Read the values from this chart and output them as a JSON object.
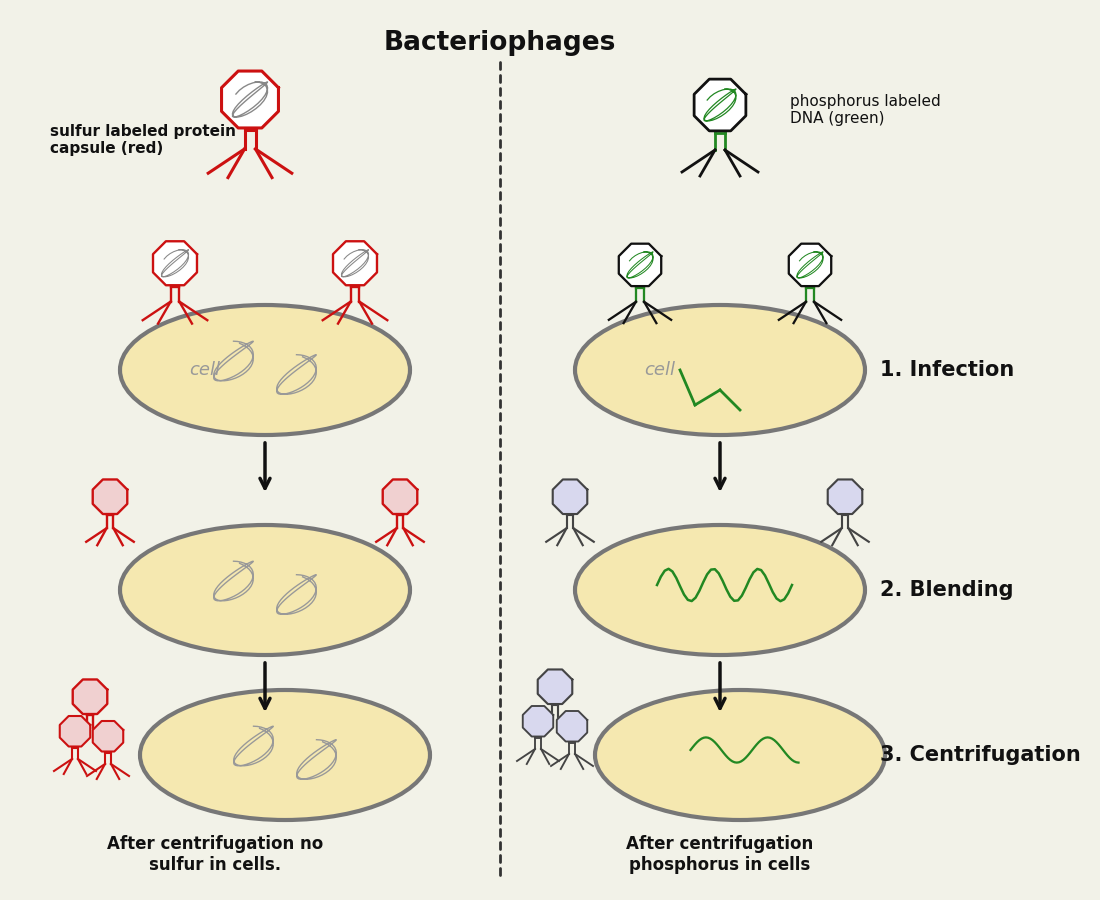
{
  "title": "Bacteriophages",
  "bg_color": "#f2f2e8",
  "left_label": "sulfur labeled protein\ncapsule (red)",
  "right_label": "phosphorus labeled\nDNA (green)",
  "step1_label": "1. Infection",
  "step2_label": "2. Blending",
  "step3_label": "3. Centrifugation",
  "left_footer": "After centrifugation no\nsulfur in cells.",
  "right_footer": "After centrifugation\nphosphorus in cells",
  "red_color": "#cc1111",
  "green_color": "#228822",
  "dark_color": "#111111",
  "cell_fill": "#f5e8b0",
  "cell_edge": "#777777",
  "ghost_fill": "#d8d8ee",
  "ghost_edge": "#444444"
}
